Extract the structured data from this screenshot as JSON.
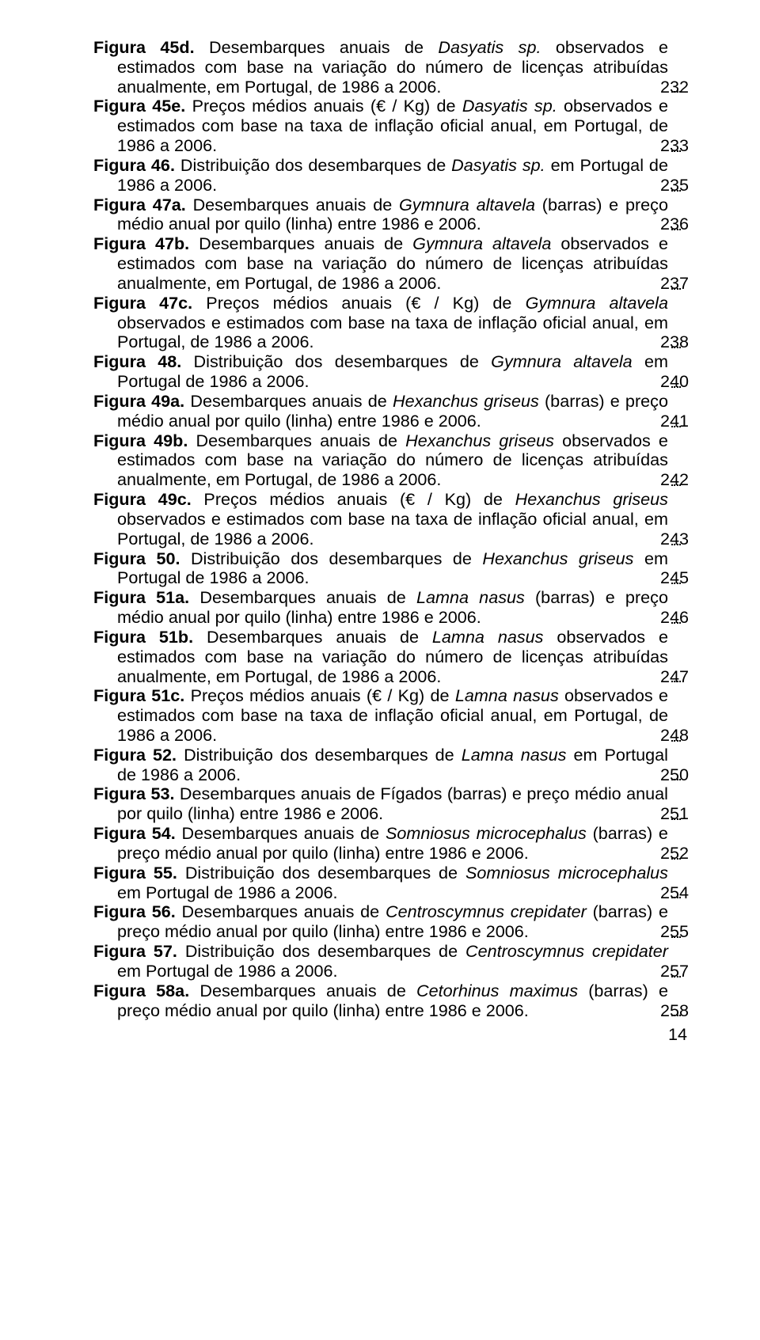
{
  "document": {
    "background_color": "#ffffff",
    "text_color": "#000000",
    "font_family": "Arial",
    "base_font_size_pt": 16,
    "page_number": "14"
  },
  "entries": [
    {
      "label": "Figura 45d.",
      "pre": " Desembarques anuais de ",
      "italic": "Dasyatis sp.",
      "post": " observados e estimados com base na variação do número de licenças atribuídas anualmente, em Portugal, de 1986 a 2006.",
      "page": "232"
    },
    {
      "label": "Figura 45e.",
      "pre": " Preços médios anuais (€ / Kg) de ",
      "italic": "Dasyatis sp.",
      "post": " observados e estimados com base na taxa de inflação oficial anual, em Portugal, de 1986 a 2006.",
      "page": "233"
    },
    {
      "label": "Figura 46.",
      "pre": " Distribuição dos desembarques de ",
      "italic": "Dasyatis sp.",
      "post": " em Portugal de 1986 a 2006.",
      "page": "235"
    },
    {
      "label": "Figura 47a.",
      "pre": " Desembarques anuais de ",
      "italic": "Gymnura altavela",
      "post": " (barras) e preço médio anual por quilo (linha) entre 1986 e 2006.",
      "page": "236"
    },
    {
      "label": "Figura 47b.",
      "pre": " Desembarques anuais de ",
      "italic": "Gymnura altavela",
      "post": " observados e estimados com base na variação do número de licenças atribuídas anualmente, em Portugal, de 1986 a 2006.",
      "page": "237"
    },
    {
      "label": "Figura 47c.",
      "pre": " Preços médios anuais (€ / Kg) de ",
      "italic": "Gymnura altavela",
      "post": " observados e estimados com base na taxa de inflação oficial anual, em Portugal, de 1986 a 2006.",
      "page": "238"
    },
    {
      "label": "Figura 48.",
      "pre": " Distribuição dos desembarques de ",
      "italic": "Gymnura altavela",
      "post": " em Portugal de 1986 a 2006.",
      "page": "240"
    },
    {
      "label": "Figura 49a.",
      "pre": " Desembarques anuais de ",
      "italic": "Hexanchus griseus",
      "post": " (barras) e preço médio anual por quilo (linha) entre 1986 e 2006.",
      "page": "241"
    },
    {
      "label": "Figura 49b.",
      "pre": " Desembarques anuais de ",
      "italic": "Hexanchus griseus",
      "post": " observados e estimados com base na variação do número de licenças atribuídas anualmente, em Portugal, de 1986 a 2006.",
      "page": "242"
    },
    {
      "label": "Figura 49c.",
      "pre": " Preços médios anuais (€ / Kg) de ",
      "italic": "Hexanchus griseus",
      "post": " observados e estimados com base na taxa de inflação oficial anual, em Portugal, de 1986 a 2006.",
      "page": "243"
    },
    {
      "label": "Figura 50.",
      "pre": " Distribuição dos desembarques de ",
      "italic": "Hexanchus griseus",
      "post": " em Portugal de 1986 a 2006.",
      "page": "245"
    },
    {
      "label": "Figura 51a.",
      "pre": " Desembarques anuais de ",
      "italic": "Lamna nasus",
      "post": " (barras) e preço médio anual por quilo (linha) entre 1986 e 2006.",
      "page": "246"
    },
    {
      "label": "Figura 51b.",
      "pre": " Desembarques anuais de ",
      "italic": "Lamna nasus",
      "post": " observados e estimados com base na variação do número de licenças atribuídas anualmente, em Portugal, de 1986 a 2006.",
      "page": "247"
    },
    {
      "label": "Figura 51c.",
      "pre": " Preços médios anuais (€ / Kg) de ",
      "italic": "Lamna nasus",
      "post": " observados e estimados com base na taxa de inflação oficial anual, em Portugal, de 1986 a 2006.",
      "page": "248"
    },
    {
      "label": "Figura 52.",
      "pre": " Distribuição dos desembarques de ",
      "italic": "Lamna nasus",
      "post": " em Portugal de 1986 a 2006.",
      "page": "250"
    },
    {
      "label": "Figura 53.",
      "pre": " Desembarques anuais de Fígados (barras) e preço médio anual por quilo (linha) entre 1986 e 2006.",
      "italic": "",
      "post": "",
      "page": "251"
    },
    {
      "label": "Figura 54.",
      "pre": " Desembarques anuais de ",
      "italic": "Somniosus microcephalus",
      "post": " (barras) e preço médio anual por quilo (linha) entre 1986 e 2006.",
      "page": "252"
    },
    {
      "label": "Figura 55.",
      "pre": " Distribuição dos desembarques de ",
      "italic": "Somniosus microcephalus",
      "post": " em Portugal de 1986 a 2006.",
      "page": "254"
    },
    {
      "label": "Figura 56.",
      "pre": " Desembarques anuais de ",
      "italic": "Centroscymnus crepidater",
      "post": " (barras) e preço médio anual por quilo (linha) entre 1986 e 2006.",
      "page": "255"
    },
    {
      "label": "Figura 57.",
      "pre": " Distribuição dos desembarques de ",
      "italic": "Centroscymnus crepidater",
      "post": " em Portugal de 1986 a 2006.",
      "page": "257"
    },
    {
      "label": "Figura 58a.",
      "pre": " Desembarques anuais de ",
      "italic": "Cetorhinus maximus",
      "post": " (barras) e preço médio anual por quilo (linha) entre 1986 e 2006.",
      "page": "258"
    }
  ]
}
